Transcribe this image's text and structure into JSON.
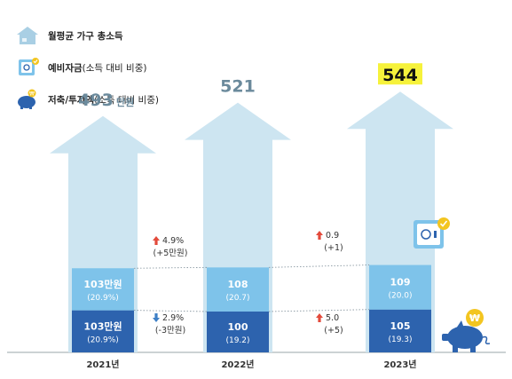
{
  "legend": {
    "income": {
      "label": "월평균 가구 총소득",
      "icon": "house-icon"
    },
    "reserve": {
      "label": "예비자금",
      "sub": "(소득 대비 비중)",
      "icon": "safe-icon"
    },
    "savings": {
      "label": "저축/투자액",
      "sub": "(소득 대비 비중)",
      "icon": "piggy-bank-icon"
    }
  },
  "colors": {
    "house": "#cde5f1",
    "reserve_bar": "#7ec3ea",
    "savings_bar": "#2d63ae",
    "up_arrow": "#e34a3b",
    "down_arrow": "#3d7fc6",
    "total_label": "#6b8a9c",
    "highlight": "#f6f23b"
  },
  "chart_data": {
    "type": "bar",
    "categories": [
      "2021년",
      "2022년",
      "2023년"
    ],
    "income": [
      {
        "value": 493,
        "label": "493",
        "unit": "만원"
      },
      {
        "value": 521,
        "label": "521",
        "unit": ""
      },
      {
        "value": 544,
        "label": "544",
        "unit": "",
        "highlighted": true
      }
    ],
    "series": [
      {
        "name": "예비자금",
        "values": [
          103,
          108,
          109
        ],
        "labels": [
          {
            "value": "103만원",
            "share": "(20.9%)"
          },
          {
            "value": "108",
            "share": "(20.7)"
          },
          {
            "value": "109",
            "share": "(20.0)"
          }
        ]
      },
      {
        "name": "저축/투자액",
        "values": [
          103,
          100,
          105
        ],
        "labels": [
          {
            "value": "103만원",
            "share": "(20.9%)"
          },
          {
            "value": "100",
            "share": "(19.2)"
          },
          {
            "value": "105",
            "share": "(19.3)"
          }
        ]
      }
    ],
    "changes": {
      "reserve": [
        {
          "direction": "up",
          "pct": "4.9%",
          "abs": "(+5만원)"
        },
        {
          "direction": "up",
          "pct": "0.9",
          "abs": "(+1)"
        }
      ],
      "savings": [
        {
          "direction": "down",
          "pct": "2.9%",
          "abs": "(-3만원)"
        },
        {
          "direction": "up",
          "pct": "5.0",
          "abs": "(+5)"
        }
      ]
    }
  }
}
